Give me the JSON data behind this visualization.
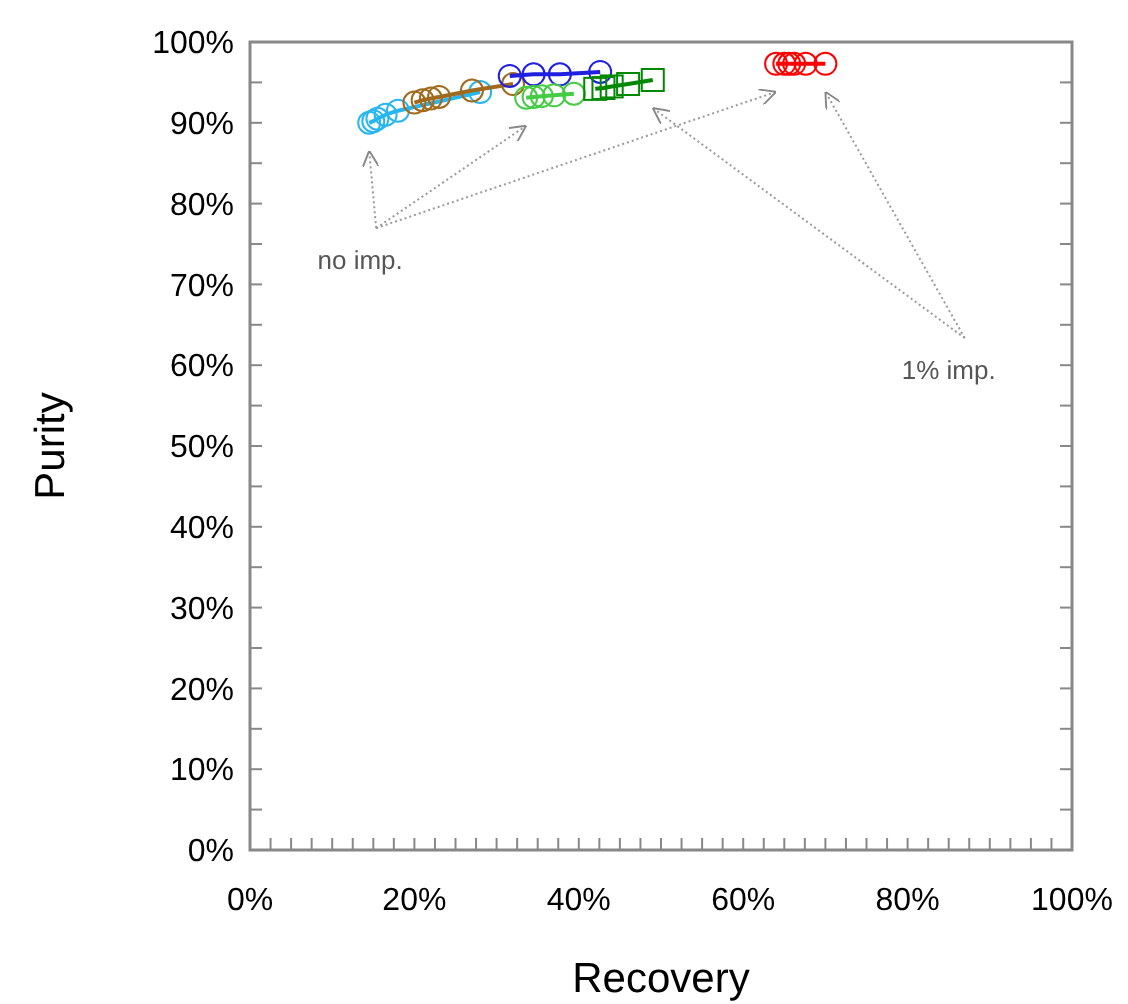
{
  "chart_data": {
    "type": "line",
    "xlabel": "Recovery",
    "ylabel": "Purity",
    "xlim": [
      0,
      100
    ],
    "ylim": [
      0,
      100
    ],
    "xticks": [
      {
        "value": 0,
        "label": "0%"
      },
      {
        "value": 2.5,
        "label": null
      },
      {
        "value": 5,
        "label": null
      },
      {
        "value": 7.5,
        "label": null
      },
      {
        "value": 10,
        "label": null
      },
      {
        "value": 12.5,
        "label": null
      },
      {
        "value": 15,
        "label": null
      },
      {
        "value": 17.5,
        "label": null
      },
      {
        "value": 20,
        "label": "20%"
      },
      {
        "value": 22.5,
        "label": null
      },
      {
        "value": 25,
        "label": null
      },
      {
        "value": 27.5,
        "label": null
      },
      {
        "value": 30,
        "label": null
      },
      {
        "value": 32.5,
        "label": null
      },
      {
        "value": 35,
        "label": null
      },
      {
        "value": 37.5,
        "label": null
      },
      {
        "value": 40,
        "label": "40%"
      },
      {
        "value": 42.5,
        "label": null
      },
      {
        "value": 45,
        "label": null
      },
      {
        "value": 47.5,
        "label": null
      },
      {
        "value": 50,
        "label": null
      },
      {
        "value": 52.5,
        "label": null
      },
      {
        "value": 55,
        "label": null
      },
      {
        "value": 57.5,
        "label": null
      },
      {
        "value": 60,
        "label": "60%"
      },
      {
        "value": 62.5,
        "label": null
      },
      {
        "value": 65,
        "label": null
      },
      {
        "value": 67.5,
        "label": null
      },
      {
        "value": 70,
        "label": null
      },
      {
        "value": 72.5,
        "label": null
      },
      {
        "value": 75,
        "label": null
      },
      {
        "value": 77.5,
        "label": null
      },
      {
        "value": 80,
        "label": "80%"
      },
      {
        "value": 82.5,
        "label": null
      },
      {
        "value": 85,
        "label": null
      },
      {
        "value": 87.5,
        "label": null
      },
      {
        "value": 90,
        "label": null
      },
      {
        "value": 92.5,
        "label": null
      },
      {
        "value": 95,
        "label": null
      },
      {
        "value": 97.5,
        "label": null
      },
      {
        "value": 100,
        "label": "100%"
      }
    ],
    "yticks": [
      {
        "value": 0,
        "label": "0%"
      },
      {
        "value": 5,
        "label": null
      },
      {
        "value": 10,
        "label": "10%"
      },
      {
        "value": 15,
        "label": null
      },
      {
        "value": 20,
        "label": "20%"
      },
      {
        "value": 25,
        "label": null
      },
      {
        "value": 30,
        "label": "30%"
      },
      {
        "value": 35,
        "label": null
      },
      {
        "value": 40,
        "label": "40%"
      },
      {
        "value": 45,
        "label": null
      },
      {
        "value": 50,
        "label": "50%"
      },
      {
        "value": 55,
        "label": null
      },
      {
        "value": 60,
        "label": "60%"
      },
      {
        "value": 65,
        "label": null
      },
      {
        "value": 70,
        "label": "70%"
      },
      {
        "value": 75,
        "label": null
      },
      {
        "value": 80,
        "label": "80%"
      },
      {
        "value": 85,
        "label": null
      },
      {
        "value": 90,
        "label": "90%"
      },
      {
        "value": 95,
        "label": null
      },
      {
        "value": 100,
        "label": "100%"
      }
    ],
    "grid": false,
    "series": [
      {
        "color": "#29b6f0",
        "marker": "circle",
        "x": [
          14.5,
          15,
          15.5,
          16.5,
          18,
          28
        ],
        "values": [
          90,
          90.2,
          90.5,
          91,
          91.5,
          93.8
        ]
      },
      {
        "color": "#a06a1c",
        "marker": "circle",
        "x": [
          20,
          21,
          22,
          23,
          27,
          32
        ],
        "values": [
          92.5,
          92.8,
          93,
          93.2,
          94,
          94.8
        ]
      },
      {
        "color": "#2020e0",
        "marker": "circle",
        "x": [
          31.6,
          34.5,
          37.7,
          42.6
        ],
        "values": [
          95.8,
          96,
          96,
          96.3
        ]
      },
      {
        "color": "#44cc44",
        "marker": "circle",
        "x": [
          33.6,
          34.5,
          35.5,
          37,
          39.4
        ],
        "values": [
          93.1,
          93.2,
          93.3,
          93.4,
          93.6
        ]
      },
      {
        "color": "#008800",
        "marker": "square",
        "x": [
          42,
          43,
          44,
          46,
          49
        ],
        "values": [
          94.2,
          94.3,
          94.5,
          94.8,
          95.3
        ]
      },
      {
        "color": "#ff0000",
        "marker": "circle",
        "x": [
          64,
          65,
          65.6,
          66.2,
          67.6,
          70
        ],
        "values": [
          97.3,
          97.3,
          97.3,
          97.3,
          97.3,
          97.3
        ]
      }
    ],
    "annotations": [
      "no imp.",
      "1% imp."
    ]
  }
}
